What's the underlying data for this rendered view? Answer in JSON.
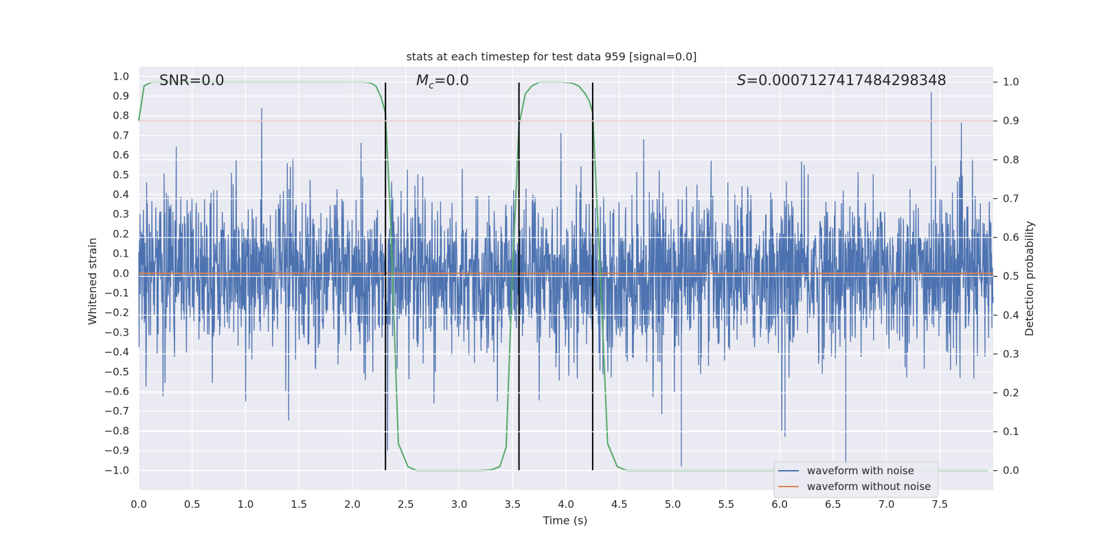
{
  "chart_data": {
    "type": "line",
    "title": "stats at each timestep for test data 959 [signal=0.0]",
    "xlabel": "Time (s)",
    "ylabel": "Whitened strain",
    "y2label": "Detection probability",
    "xlim": [
      0.0,
      8.0
    ],
    "ylim": [
      -1.1,
      1.05
    ],
    "y2lim": [
      -0.05,
      1.04
    ],
    "x_ticks": [
      "0.0",
      "0.5",
      "1.0",
      "1.5",
      "2.0",
      "2.5",
      "3.0",
      "3.5",
      "4.0",
      "4.5",
      "5.0",
      "5.5",
      "6.0",
      "6.5",
      "7.0",
      "7.5"
    ],
    "y_ticks": [
      "1.0",
      "0.9",
      "0.8",
      "0.7",
      "0.6",
      "0.5",
      "0.4",
      "0.3",
      "0.2",
      "0.1",
      "0.0",
      "−0.1",
      "−0.2",
      "−0.3",
      "−0.4",
      "−0.5",
      "−0.6",
      "−0.7",
      "−0.8",
      "−0.9",
      "−1.0"
    ],
    "y2_ticks": [
      "1.0",
      "0.9",
      "0.8",
      "0.7",
      "0.6",
      "0.5",
      "0.4",
      "0.3",
      "0.2",
      "0.1",
      "0.0"
    ],
    "annotations": {
      "snr": "SNR=0.0",
      "mc_symbol": "M",
      "mc_sub": "c",
      "mc_value": "=0.0",
      "s_symbol": "S",
      "s_value": "=0.0007127417484298348"
    },
    "threshold_y2": 0.9,
    "vertical_lines_x": [
      2.31,
      3.56,
      4.25
    ],
    "series": [
      {
        "name": "waveform with noise",
        "color": "#4c72b0",
        "axis": "left",
        "kind": "noise",
        "envelope_typical": 0.45,
        "max": 0.92,
        "min": -0.98
      },
      {
        "name": "waveform without noise",
        "color": "#dd8452",
        "axis": "left",
        "x": [
          0.0,
          8.0
        ],
        "y": [
          0.0,
          0.0
        ]
      },
      {
        "name": "detection probability",
        "color": "#55a868",
        "axis": "right",
        "x": [
          0.0,
          0.05,
          0.12,
          0.25,
          0.5,
          1.0,
          1.5,
          2.0,
          2.1,
          2.17,
          2.22,
          2.27,
          2.31,
          2.36,
          2.43,
          2.52,
          2.6,
          2.8,
          3.0,
          3.2,
          3.3,
          3.38,
          3.44,
          3.5,
          3.56,
          3.62,
          3.68,
          3.75,
          3.85,
          3.95,
          4.05,
          4.12,
          4.18,
          4.22,
          4.25,
          4.32,
          4.39,
          4.48,
          4.57,
          4.7,
          5.0,
          6.0,
          7.0,
          7.95
        ],
        "y": [
          0.9,
          0.99,
          1.0,
          1.0,
          1.0,
          1.0,
          1.0,
          1.0,
          1.0,
          0.998,
          0.99,
          0.96,
          0.92,
          0.63,
          0.07,
          0.01,
          0.0,
          0.0,
          0.0,
          0.0,
          0.002,
          0.01,
          0.06,
          0.52,
          0.89,
          0.97,
          0.99,
          1.0,
          1.0,
          1.0,
          0.998,
          0.99,
          0.97,
          0.95,
          0.92,
          0.51,
          0.07,
          0.01,
          0.0,
          0.0,
          0.0,
          0.0,
          0.0,
          0.0
        ]
      }
    ],
    "legend": [
      "waveform with noise",
      "waveform without noise"
    ],
    "legend_position": "lower-right",
    "grid": true
  },
  "colors": {
    "background": "#eaeaf2",
    "grid": "#ffffff",
    "noise": "#4c72b0",
    "clean": "#dd8452",
    "probability": "#55a868",
    "threshold": "#c44e52",
    "markers": "#000000",
    "text": "#262626"
  }
}
